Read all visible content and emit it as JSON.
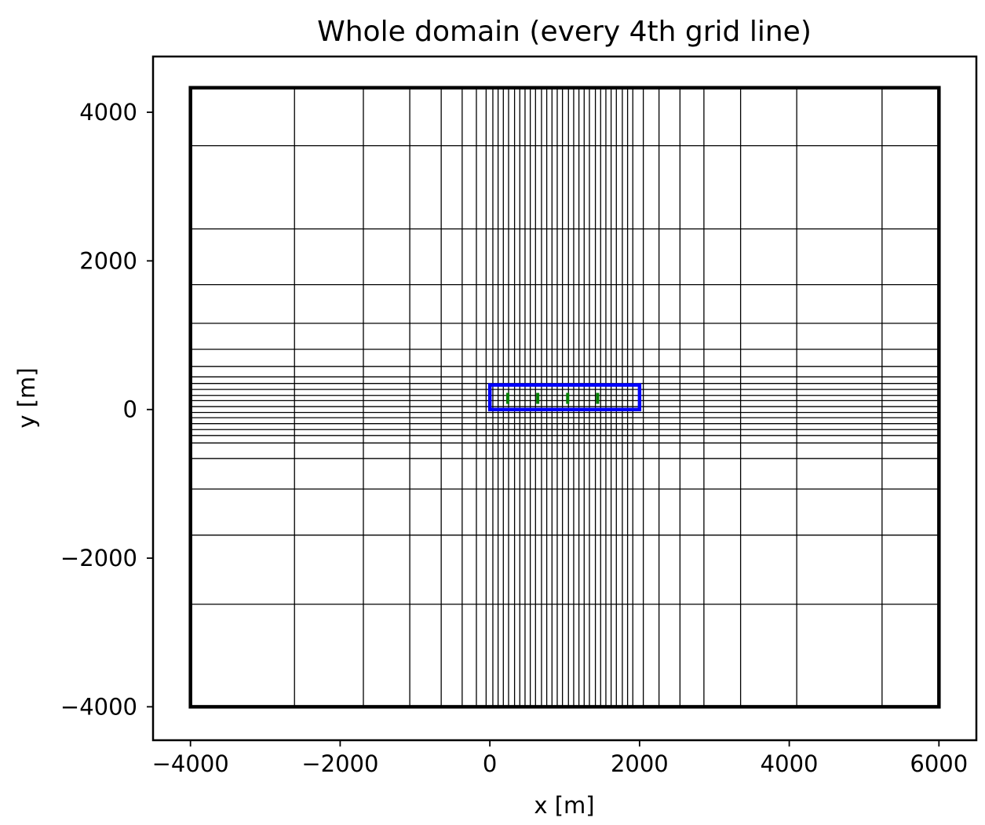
{
  "chart_data": {
    "type": "line",
    "title": "Whole domain (every 4th grid line)",
    "xlabel": "x [m]",
    "ylabel": "y [m]",
    "xlim": [
      -4500,
      6500
    ],
    "ylim": [
      -4450,
      4750
    ],
    "xticks": [
      -4000,
      -2000,
      0,
      2000,
      4000,
      6000
    ],
    "yticks": [
      -4000,
      -2000,
      0,
      2000,
      4000
    ],
    "xtick_labels": [
      "−4000",
      "−2000",
      "0",
      "2000",
      "4000",
      "6000"
    ],
    "ytick_labels": [
      "−4000",
      "−2000",
      "0",
      "2000",
      "4000"
    ],
    "grid_x_lines": [
      -2610,
      -1690,
      -1070,
      -650,
      -370,
      -180,
      -50,
      40,
      110,
      180,
      250,
      330,
      400,
      470,
      540,
      610,
      690,
      760,
      830,
      900,
      970,
      1050,
      1120,
      1190,
      1260,
      1330,
      1410,
      1480,
      1550,
      1620,
      1690,
      1770,
      1840,
      1910,
      2050,
      2260,
      2540,
      2860,
      3350,
      4100,
      5240
    ],
    "grid_y_lines": [
      3550,
      2430,
      1680,
      1160,
      810,
      580,
      440,
      350,
      270,
      190,
      120,
      40,
      -40,
      -110,
      -190,
      -270,
      -350,
      -450,
      -660,
      -1070,
      -1690,
      -2620
    ],
    "outer_domain": {
      "x": [
        -4000,
        6000
      ],
      "y": [
        -4000,
        4330
      ]
    },
    "inner_domain": {
      "x": [
        0,
        2000
      ],
      "y": [
        0,
        330
      ],
      "color": "#0000ff"
    },
    "turbines": {
      "x": [
        240,
        640,
        1040,
        1440
      ],
      "y": [
        150,
        150,
        150,
        150
      ],
      "color": "#008000"
    }
  }
}
